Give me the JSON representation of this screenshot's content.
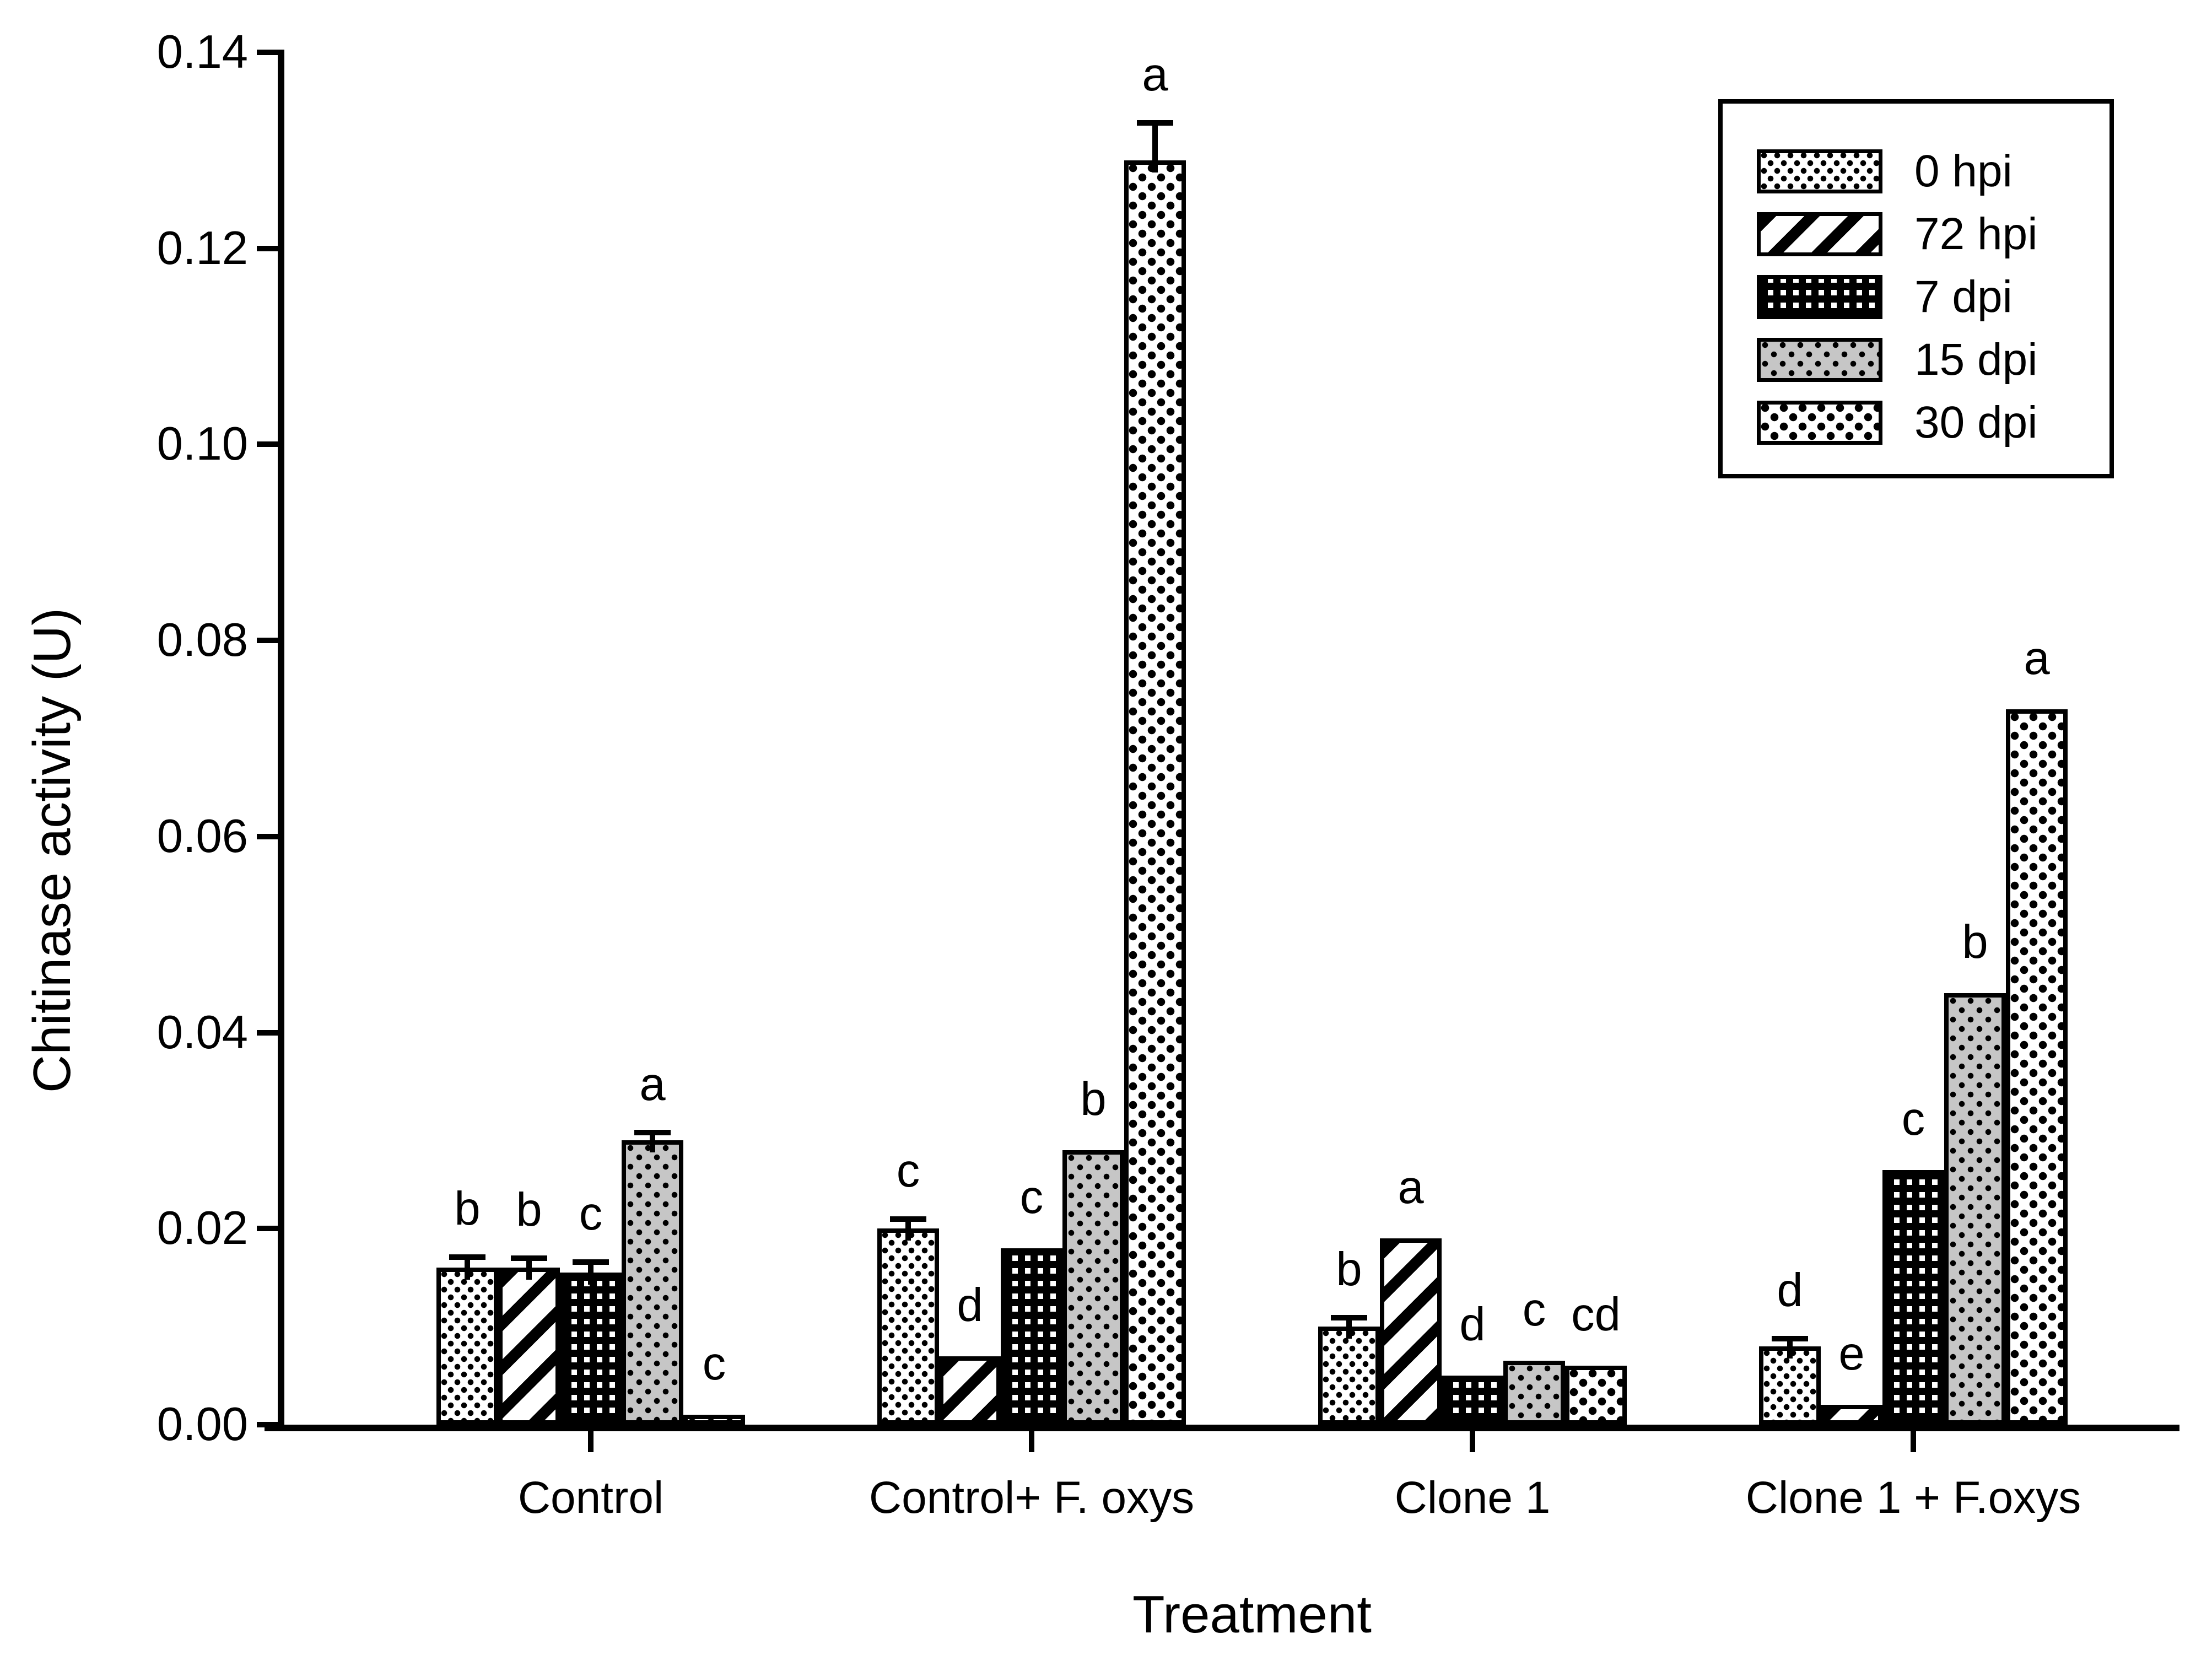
{
  "figure_title": "",
  "axes": {
    "y": {
      "title": "Chitinase activity (U)",
      "tick_labels": [
        "0.00",
        "0.02",
        "0.04",
        "0.06",
        "0.08",
        "0.10",
        "0.12",
        "0.14"
      ],
      "min": 0,
      "max": 0.14
    },
    "x": {
      "title": "Treatment",
      "categories": [
        "Control",
        "Control+ F. oxys",
        "Clone 1",
        "Clone 1 + F.oxys"
      ]
    }
  },
  "legend": {
    "position": "top-right",
    "entries": [
      {
        "label": "0 hpi",
        "pattern": "fine-dots"
      },
      {
        "label": "72 hpi",
        "pattern": "diagonal-stripes"
      },
      {
        "label": "7 dpi",
        "pattern": "dark-grid"
      },
      {
        "label": "15 dpi",
        "pattern": "gray-dots"
      },
      {
        "label": "30 dpi",
        "pattern": "coarse-dots"
      }
    ]
  },
  "colors": {
    "foreground": "#000000",
    "background": "#ffffff",
    "gray_fill": "#c6c6c6"
  },
  "chart_data": {
    "type": "bar",
    "title": "",
    "xlabel": "Treatment",
    "ylabel": "Chitinase activity (U)",
    "ylim": [
      0,
      0.14
    ],
    "ytick_step": 0.02,
    "grid": false,
    "legend_position": "top-right",
    "error_bars": "upper standard-error whiskers with caps",
    "annotations": "significance letters above bars",
    "categories": [
      "Control",
      "Control+ F. oxys",
      "Clone 1",
      "Clone 1 + F.oxys"
    ],
    "series": [
      {
        "name": "0 hpi",
        "pattern": "fine-dots",
        "values": [
          0.016,
          0.02,
          0.01,
          0.008
        ],
        "errors": [
          0.0008,
          0.0007,
          0.0006,
          0.0005
        ],
        "sig_letters": [
          "b",
          "c",
          "b",
          "d"
        ]
      },
      {
        "name": "72 hpi",
        "pattern": "diagonal-stripes",
        "values": [
          0.016,
          0.007,
          0.019,
          0.002
        ],
        "errors": [
          0.0007,
          0,
          0,
          0
        ],
        "sig_letters": [
          "b",
          "d",
          "a",
          "e"
        ]
      },
      {
        "name": "7 dpi",
        "pattern": "dark-grid",
        "values": [
          0.0155,
          0.018,
          0.005,
          0.026
        ],
        "errors": [
          0.0008,
          0,
          0,
          0
        ],
        "sig_letters": [
          "c",
          "c",
          "d",
          "c"
        ]
      },
      {
        "name": "15 dpi",
        "pattern": "gray-dots",
        "values": [
          0.029,
          0.028,
          0.0065,
          0.044
        ],
        "errors": [
          0.0005,
          0,
          0,
          0
        ],
        "sig_letters": [
          "a",
          "b",
          "c",
          "b"
        ]
      },
      {
        "name": "30 dpi",
        "pattern": "coarse-dots",
        "values": [
          0.001,
          0.129,
          0.006,
          0.073
        ],
        "errors": [
          0,
          0.0035,
          0,
          0
        ],
        "sig_letters": [
          "c",
          "a",
          "cd",
          "a"
        ]
      }
    ]
  }
}
